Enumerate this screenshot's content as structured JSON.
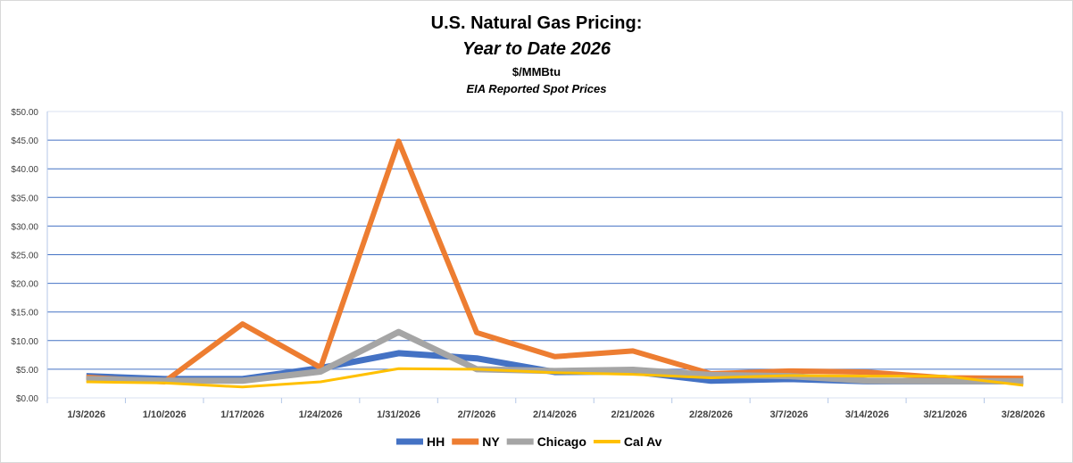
{
  "chart_data": {
    "type": "line",
    "title": "U.S. Natural Gas Pricing:",
    "subtitle": "Year to Date 2026",
    "units": "$/MMBtu",
    "source": "EIA Reported Spot Prices",
    "xlabel": "",
    "ylabel": "",
    "ylim": [
      0,
      50
    ],
    "yticks": [
      "$0.00",
      "$5.00",
      "$10.00",
      "$15.00",
      "$20.00",
      "$25.00",
      "$30.00",
      "$35.00",
      "$40.00",
      "$45.00",
      "$50.00"
    ],
    "grid": true,
    "legend": "bottom",
    "categories": [
      "1/3/2026",
      "1/10/2026",
      "1/17/2026",
      "1/24/2026",
      "1/31/2026",
      "2/7/2026",
      "2/14/2026",
      "2/21/2026",
      "2/28/2026",
      "3/7/2026",
      "3/14/2026",
      "3/21/2026",
      "3/28/2026"
    ],
    "series": [
      {
        "name": "HH",
        "color": "#4472C4",
        "values": [
          3.8,
          3.3,
          3.3,
          5.2,
          7.8,
          6.9,
          4.5,
          4.6,
          3.0,
          3.3,
          2.9,
          2.9,
          2.9
        ]
      },
      {
        "name": "NY",
        "color": "#ED7D31",
        "values": [
          3.6,
          2.8,
          12.9,
          5.3,
          44.8,
          11.4,
          7.2,
          8.2,
          4.2,
          4.7,
          4.5,
          3.5,
          3.4
        ]
      },
      {
        "name": "Chicago",
        "color": "#A5A5A5",
        "values": [
          3.3,
          3.0,
          3.0,
          4.6,
          11.5,
          5.0,
          4.7,
          4.9,
          4.0,
          3.8,
          3.0,
          2.9,
          2.9
        ]
      },
      {
        "name": "Cal Av",
        "color": "#FFC000",
        "values": [
          2.8,
          2.6,
          1.9,
          2.8,
          5.1,
          5.0,
          4.4,
          4.1,
          3.5,
          3.9,
          3.8,
          3.8,
          2.2
        ]
      }
    ]
  }
}
